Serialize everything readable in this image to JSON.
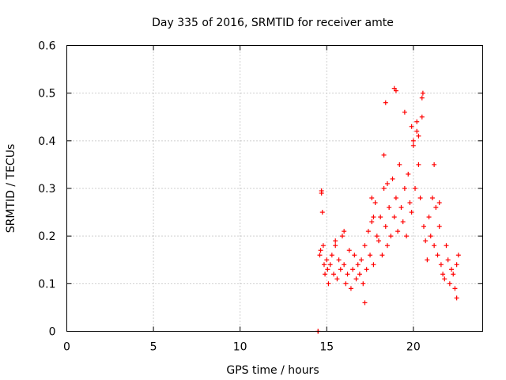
{
  "chart_data": {
    "type": "scatter",
    "title": "Day 335 of 2016, SRMTID for receiver amte",
    "xlabel": "GPS time / hours",
    "ylabel": "SRMTID / TECUs",
    "xlim": [
      0,
      24
    ],
    "ylim": [
      0,
      0.6
    ],
    "xticks": [
      0,
      5,
      10,
      15,
      20
    ],
    "yticks": [
      0,
      0.1,
      0.2,
      0.3,
      0.4,
      0.5,
      0.6
    ],
    "xtick_labels": [
      "0",
      "5",
      "10",
      "15",
      "20"
    ],
    "ytick_labels": [
      "0",
      "0.1",
      "0.2",
      "0.3",
      "0.4",
      "0.5",
      "0.6"
    ],
    "grid": true,
    "marker": "+",
    "series_color": "#ff0000",
    "series": [
      {
        "name": "SRMTID",
        "x": [
          14.5,
          14.5,
          14.6,
          14.65,
          14.7,
          14.7,
          14.75,
          14.8,
          14.85,
          14.9,
          15.0,
          15.05,
          15.1,
          15.2,
          15.3,
          15.4,
          15.5,
          15.6,
          15.7,
          15.8,
          15.9,
          16.0,
          16.1,
          16.2,
          16.3,
          16.4,
          16.5,
          16.6,
          16.7,
          16.8,
          16.9,
          17.0,
          17.1,
          17.2,
          17.3,
          17.4,
          17.5,
          17.6,
          17.7,
          17.8,
          17.9,
          18.0,
          18.1,
          18.2,
          18.3,
          18.4,
          18.5,
          18.6,
          18.7,
          18.8,
          18.9,
          19.0,
          19.1,
          19.2,
          19.3,
          19.4,
          19.5,
          19.6,
          19.7,
          19.8,
          19.9,
          20.0,
          20.1,
          20.2,
          20.3,
          20.4,
          20.5,
          20.6,
          20.7,
          20.8,
          20.9,
          21.0,
          21.1,
          21.2,
          21.3,
          21.4,
          21.5,
          21.6,
          21.7,
          21.8,
          21.9,
          22.0,
          22.1,
          22.2,
          22.3,
          22.4,
          22.5,
          22.6,
          18.9,
          19.0,
          20.5,
          20.55,
          18.3,
          18.4,
          20.2,
          20.3,
          19.9,
          20.0,
          17.6,
          17.7,
          18.5,
          19.5,
          21.2,
          21.5,
          16.0,
          15.5,
          17.2,
          22.5
        ],
        "y": [
          0.0,
          0.0,
          0.16,
          0.17,
          0.295,
          0.29,
          0.25,
          0.18,
          0.14,
          0.12,
          0.15,
          0.13,
          0.1,
          0.14,
          0.16,
          0.12,
          0.18,
          0.11,
          0.15,
          0.13,
          0.2,
          0.14,
          0.1,
          0.12,
          0.17,
          0.09,
          0.13,
          0.16,
          0.11,
          0.14,
          0.12,
          0.15,
          0.1,
          0.18,
          0.13,
          0.21,
          0.16,
          0.23,
          0.14,
          0.27,
          0.2,
          0.19,
          0.24,
          0.16,
          0.3,
          0.22,
          0.18,
          0.26,
          0.2,
          0.32,
          0.24,
          0.28,
          0.21,
          0.35,
          0.26,
          0.23,
          0.3,
          0.2,
          0.33,
          0.27,
          0.25,
          0.39,
          0.3,
          0.42,
          0.35,
          0.28,
          0.45,
          0.22,
          0.19,
          0.15,
          0.24,
          0.2,
          0.28,
          0.18,
          0.26,
          0.16,
          0.22,
          0.14,
          0.12,
          0.11,
          0.18,
          0.15,
          0.1,
          0.13,
          0.12,
          0.09,
          0.14,
          0.16,
          0.51,
          0.505,
          0.49,
          0.5,
          0.37,
          0.48,
          0.44,
          0.41,
          0.43,
          0.4,
          0.28,
          0.24,
          0.31,
          0.46,
          0.35,
          0.27,
          0.21,
          0.19,
          0.06,
          0.07
        ]
      }
    ]
  }
}
